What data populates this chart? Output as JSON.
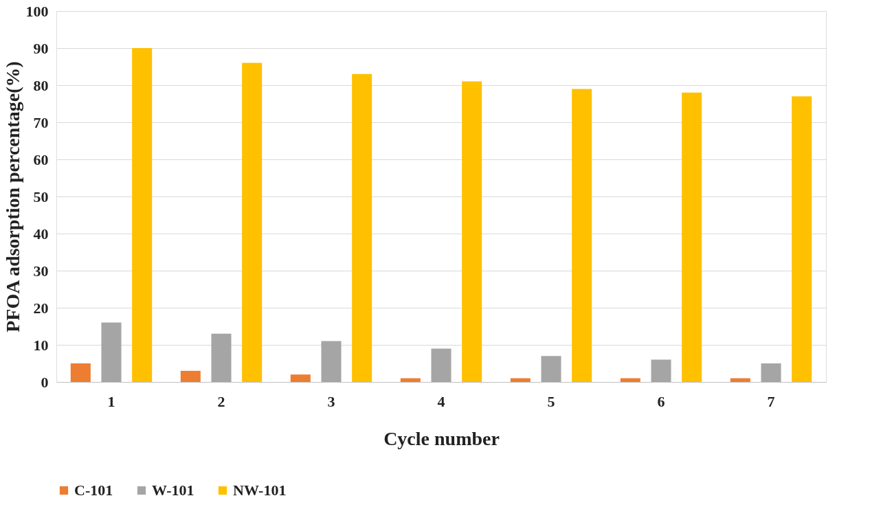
{
  "chart_data": {
    "type": "bar",
    "xlabel": "Cycle number",
    "ylabel": "PFOA adsorption percentage(%)",
    "categories": [
      "1",
      "2",
      "3",
      "4",
      "5",
      "6",
      "7"
    ],
    "series": [
      {
        "name": "C-101",
        "color": "#ed7d31",
        "values": [
          5,
          3,
          2,
          1,
          1,
          1,
          1
        ]
      },
      {
        "name": "W-101",
        "color": "#a5a5a5",
        "values": [
          16,
          13,
          11,
          9,
          7,
          6,
          5
        ]
      },
      {
        "name": "NW-101",
        "color": "#ffc000",
        "values": [
          90,
          86,
          83,
          81,
          79,
          78,
          77
        ]
      }
    ],
    "ylim": [
      0,
      100
    ],
    "yticks": [
      0,
      10,
      20,
      30,
      40,
      50,
      60,
      70,
      80,
      90,
      100
    ],
    "grid": "y",
    "legend": "bottom"
  }
}
